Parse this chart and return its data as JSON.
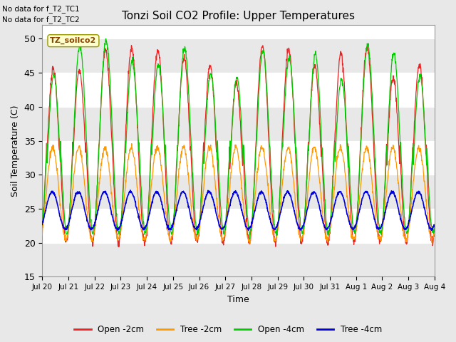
{
  "title": "Tonzi Soil CO2 Profile: Upper Temperatures",
  "xlabel": "Time",
  "ylabel": "Soil Temperature (C)",
  "ylim": [
    15,
    52
  ],
  "yticks": [
    15,
    20,
    25,
    30,
    35,
    40,
    45,
    50
  ],
  "fig_bg": "#e8e8e8",
  "plot_bg": "#f0f0f0",
  "colors": {
    "open_2cm": "#ee2222",
    "tree_2cm": "#ff9900",
    "open_4cm": "#00cc00",
    "tree_4cm": "#0000dd"
  },
  "legend_labels": [
    "Open -2cm",
    "Tree -2cm",
    "Open -4cm",
    "Tree -4cm"
  ],
  "annotation_box_label": "TZ_soilco2",
  "no_data_lines": [
    "No data for f_T2_TC1",
    "No data for f_T2_TC2"
  ],
  "x_tick_labels": [
    "Jul 20",
    "Jul 21",
    "Jul 22",
    "Jul 23",
    "Jul 24",
    "Jul 25",
    "Jul 26",
    "Jul 27",
    "Jul 28",
    "Jul 29",
    "Jul 30",
    "Jul 31",
    "Aug 1",
    "Aug 2",
    "Aug 3",
    "Aug 4"
  ],
  "n_days": 15,
  "pts_per_day": 96
}
